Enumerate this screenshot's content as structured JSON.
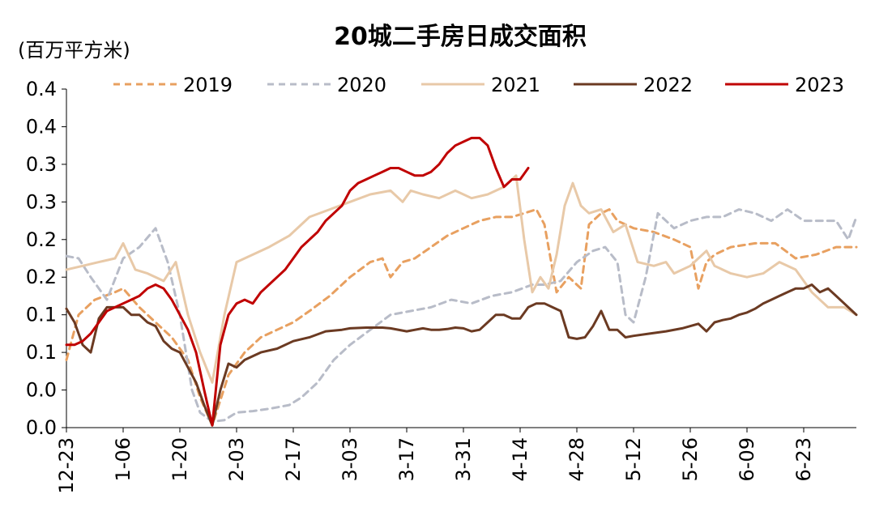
{
  "chart_data": {
    "type": "line",
    "title": "20城二手房日成交面积",
    "unit_label": "(百万平方米)",
    "y_tick_labels": [
      "0.0",
      "0.0",
      "0.1",
      "0.1",
      "0.2",
      "0.2",
      "0.3",
      "0.3",
      "0.4",
      "0.4"
    ],
    "ylim": [
      0,
      0.45
    ],
    "x_tick_labels": [
      "12-23",
      "1-06",
      "1-20",
      "2-03",
      "2-17",
      "3-03",
      "3-17",
      "3-31",
      "4-14",
      "4-28",
      "5-12",
      "5-26",
      "6-09",
      "6-23"
    ],
    "x_day_range": [
      0,
      195
    ],
    "x_tick_days": [
      0,
      14,
      28,
      42,
      56,
      70,
      84,
      98,
      112,
      126,
      140,
      154,
      168,
      182
    ],
    "legend_position": "top",
    "series": [
      {
        "name": "2019",
        "color": "#E8A060",
        "dash": "dashed",
        "x": [
          0,
          3,
          7,
          12,
          14,
          18,
          22,
          26,
          30,
          33,
          36,
          40,
          44,
          48,
          52,
          56,
          60,
          65,
          70,
          75,
          78,
          80,
          83,
          86,
          90,
          94,
          98,
          102,
          106,
          110,
          113,
          116,
          118,
          121,
          124,
          127,
          129,
          132,
          134,
          136,
          140,
          145,
          150,
          154,
          156,
          158,
          160,
          164,
          170,
          175,
          180,
          185,
          190,
          195
        ],
        "y": [
          0.09,
          0.15,
          0.17,
          0.18,
          0.185,
          0.16,
          0.14,
          0.12,
          0.09,
          0.04,
          0.003,
          0.07,
          0.1,
          0.12,
          0.13,
          0.14,
          0.155,
          0.175,
          0.2,
          0.22,
          0.225,
          0.2,
          0.22,
          0.225,
          0.24,
          0.255,
          0.265,
          0.275,
          0.28,
          0.28,
          0.285,
          0.29,
          0.27,
          0.18,
          0.2,
          0.185,
          0.27,
          0.285,
          0.29,
          0.275,
          0.265,
          0.26,
          0.25,
          0.24,
          0.185,
          0.22,
          0.23,
          0.24,
          0.245,
          0.245,
          0.225,
          0.23,
          0.24,
          0.24
        ]
      },
      {
        "name": "2020",
        "color": "#B8BCC8",
        "dash": "dashed",
        "x": [
          0,
          3,
          6,
          10,
          14,
          18,
          22,
          25,
          28,
          31,
          33,
          36,
          39,
          42,
          46,
          50,
          55,
          58,
          62,
          66,
          70,
          75,
          80,
          85,
          90,
          95,
          100,
          105,
          110,
          115,
          118,
          122,
          126,
          130,
          133,
          136,
          138,
          140,
          143,
          146,
          150,
          154,
          158,
          162,
          166,
          170,
          174,
          178,
          182,
          186,
          190,
          193,
          195
        ],
        "y": [
          0.228,
          0.225,
          0.2,
          0.17,
          0.225,
          0.24,
          0.265,
          0.22,
          0.15,
          0.05,
          0.02,
          0.008,
          0.01,
          0.02,
          0.022,
          0.025,
          0.03,
          0.04,
          0.06,
          0.09,
          0.11,
          0.13,
          0.15,
          0.155,
          0.16,
          0.17,
          0.165,
          0.175,
          0.18,
          0.19,
          0.19,
          0.195,
          0.22,
          0.235,
          0.24,
          0.22,
          0.15,
          0.14,
          0.2,
          0.285,
          0.265,
          0.275,
          0.28,
          0.28,
          0.29,
          0.285,
          0.275,
          0.29,
          0.275,
          0.275,
          0.275,
          0.25,
          0.28
        ]
      },
      {
        "name": "2021",
        "color": "#E8C9A8",
        "dash": "solid",
        "x": [
          0,
          4,
          8,
          12,
          14,
          17,
          20,
          24,
          27,
          30,
          33,
          36,
          39,
          42,
          46,
          50,
          55,
          60,
          65,
          70,
          75,
          80,
          83,
          85,
          88,
          92,
          96,
          100,
          104,
          108,
          111,
          113,
          115,
          117,
          119,
          121,
          123,
          125,
          127,
          129,
          132,
          135,
          138,
          141,
          145,
          148,
          150,
          154,
          156,
          158,
          160,
          164,
          168,
          172,
          176,
          180,
          184,
          188,
          192,
          195
        ],
        "y": [
          0.21,
          0.215,
          0.22,
          0.225,
          0.245,
          0.21,
          0.205,
          0.195,
          0.22,
          0.15,
          0.1,
          0.06,
          0.15,
          0.22,
          0.23,
          0.24,
          0.255,
          0.28,
          0.29,
          0.3,
          0.31,
          0.315,
          0.3,
          0.315,
          0.31,
          0.305,
          0.315,
          0.305,
          0.31,
          0.32,
          0.335,
          0.25,
          0.18,
          0.2,
          0.185,
          0.23,
          0.295,
          0.325,
          0.295,
          0.285,
          0.29,
          0.26,
          0.27,
          0.22,
          0.215,
          0.22,
          0.205,
          0.215,
          0.225,
          0.235,
          0.215,
          0.205,
          0.2,
          0.205,
          0.22,
          0.21,
          0.18,
          0.16,
          0.16,
          0.15
        ]
      },
      {
        "name": "2022",
        "color": "#6B3A22",
        "dash": "solid",
        "x": [
          0,
          2,
          4,
          6,
          8,
          10,
          12,
          14,
          16,
          18,
          20,
          22,
          24,
          26,
          28,
          30,
          32,
          34,
          36,
          38,
          40,
          42,
          44,
          48,
          52,
          56,
          60,
          64,
          68,
          70,
          74,
          78,
          80,
          84,
          88,
          90,
          92,
          94,
          96,
          98,
          100,
          102,
          104,
          106,
          108,
          110,
          112,
          114,
          116,
          118,
          120,
          122,
          124,
          126,
          128,
          130,
          132,
          134,
          136,
          138,
          140,
          144,
          148,
          152,
          156,
          158,
          160,
          162,
          164,
          166,
          168,
          170,
          172,
          174,
          176,
          178,
          180,
          182,
          184,
          186,
          188,
          190,
          192,
          195
        ],
        "y": [
          0.158,
          0.14,
          0.11,
          0.1,
          0.145,
          0.16,
          0.16,
          0.16,
          0.15,
          0.15,
          0.14,
          0.135,
          0.115,
          0.105,
          0.1,
          0.08,
          0.06,
          0.03,
          0.003,
          0.05,
          0.085,
          0.08,
          0.09,
          0.1,
          0.105,
          0.115,
          0.12,
          0.128,
          0.13,
          0.132,
          0.133,
          0.133,
          0.132,
          0.128,
          0.132,
          0.13,
          0.13,
          0.131,
          0.133,
          0.132,
          0.128,
          0.13,
          0.14,
          0.15,
          0.15,
          0.145,
          0.145,
          0.16,
          0.165,
          0.165,
          0.16,
          0.155,
          0.12,
          0.118,
          0.12,
          0.135,
          0.155,
          0.13,
          0.13,
          0.12,
          0.122,
          0.125,
          0.128,
          0.132,
          0.138,
          0.128,
          0.14,
          0.143,
          0.145,
          0.15,
          0.153,
          0.158,
          0.165,
          0.17,
          0.175,
          0.18,
          0.185,
          0.185,
          0.19,
          0.18,
          0.185,
          0.175,
          0.165,
          0.15
        ]
      },
      {
        "name": "2023",
        "color": "#C00000",
        "dash": "solid",
        "x": [
          0,
          2,
          4,
          6,
          8,
          10,
          12,
          14,
          16,
          18,
          20,
          22,
          24,
          26,
          28,
          30,
          32,
          34,
          36,
          38,
          40,
          42,
          44,
          46,
          48,
          50,
          52,
          54,
          56,
          58,
          60,
          62,
          64,
          66,
          68,
          70,
          72,
          74,
          76,
          78,
          80,
          82,
          84,
          86,
          88,
          90,
          92,
          94,
          96,
          98,
          100,
          102,
          104,
          106,
          108,
          110,
          112,
          114
        ],
        "y": [
          0.11,
          0.11,
          0.115,
          0.125,
          0.14,
          0.155,
          0.16,
          0.165,
          0.17,
          0.175,
          0.185,
          0.19,
          0.185,
          0.17,
          0.15,
          0.13,
          0.1,
          0.05,
          0.003,
          0.11,
          0.15,
          0.165,
          0.17,
          0.165,
          0.18,
          0.19,
          0.2,
          0.21,
          0.225,
          0.24,
          0.25,
          0.26,
          0.275,
          0.285,
          0.295,
          0.315,
          0.325,
          0.33,
          0.335,
          0.34,
          0.345,
          0.345,
          0.34,
          0.335,
          0.335,
          0.34,
          0.35,
          0.365,
          0.375,
          0.38,
          0.385,
          0.385,
          0.375,
          0.345,
          0.32,
          0.33,
          0.33,
          0.345
        ]
      }
    ]
  }
}
